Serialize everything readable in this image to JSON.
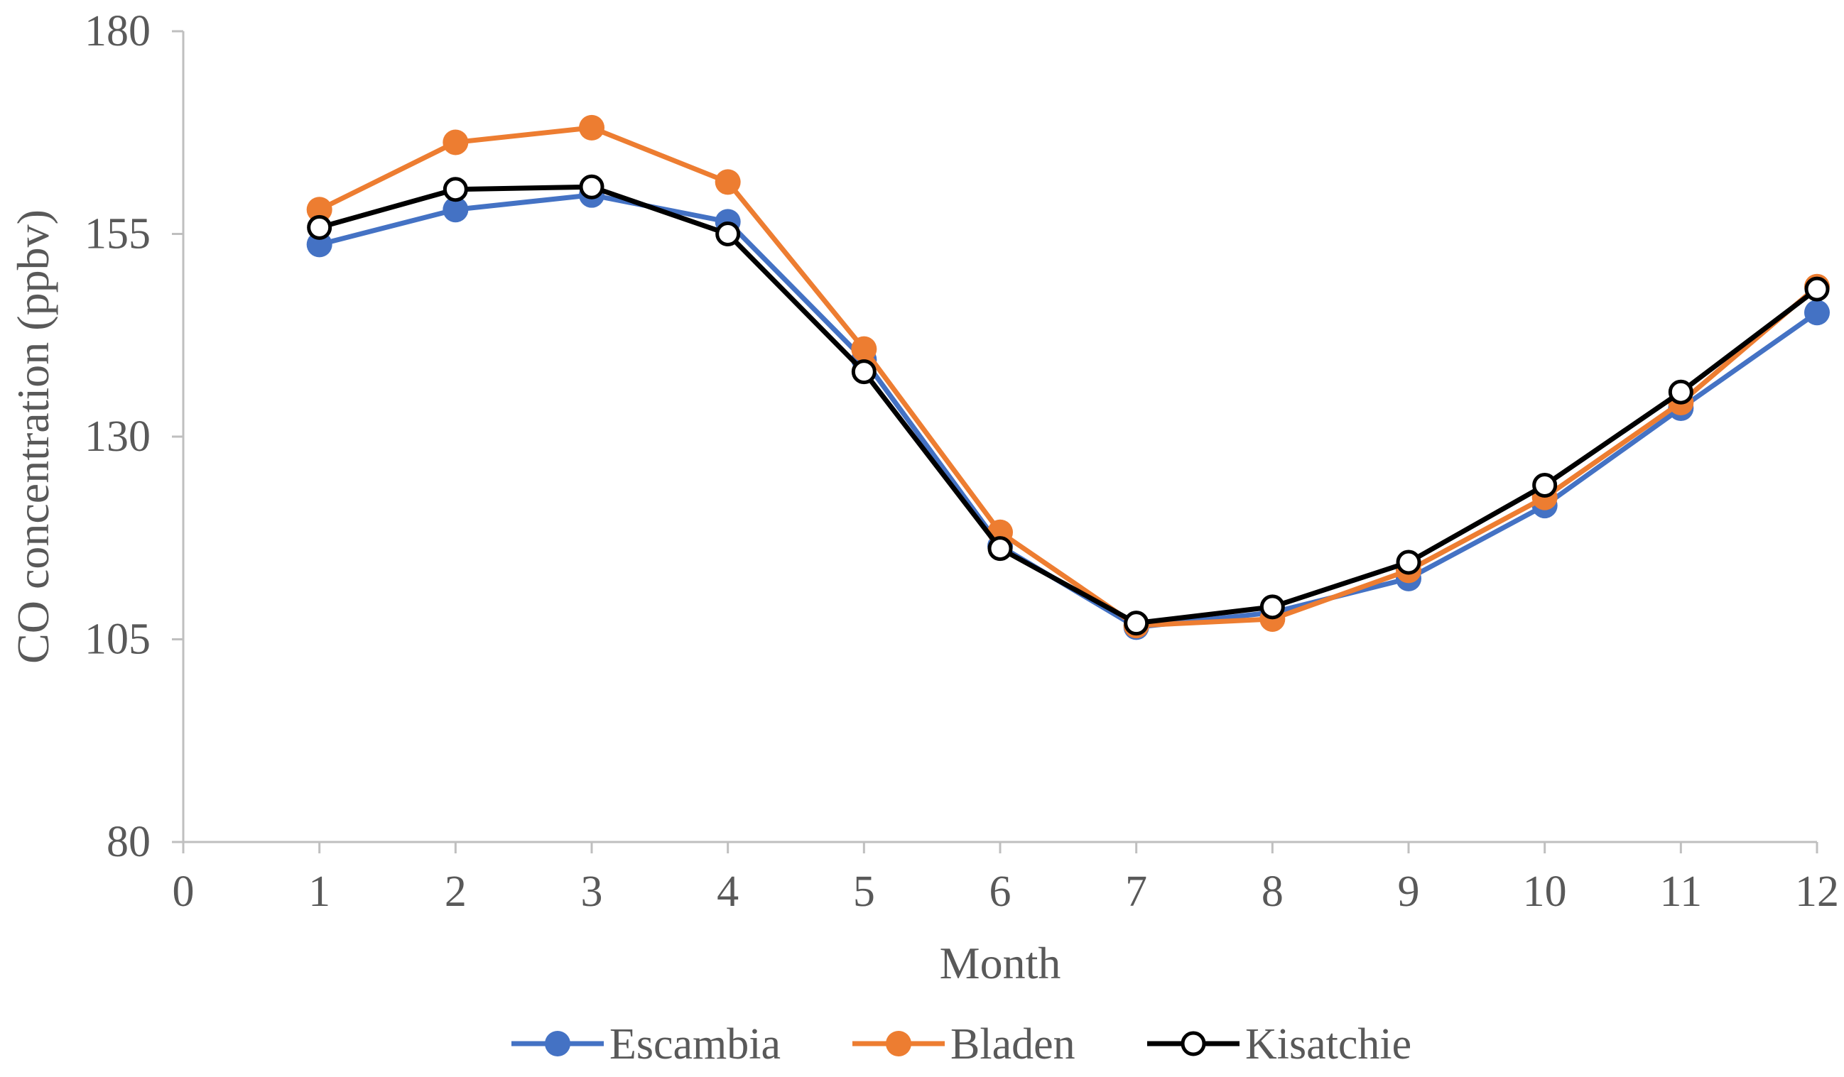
{
  "chart_data": {
    "type": "line",
    "title": "",
    "xlabel": "Month",
    "ylabel": "CO concentration (ppbv)",
    "xlim": [
      0,
      12
    ],
    "ylim": [
      80,
      180
    ],
    "x_ticks": [
      "0",
      "1",
      "2",
      "3",
      "4",
      "5",
      "6",
      "7",
      "8",
      "9",
      "10",
      "11",
      "12"
    ],
    "y_ticks": [
      "80",
      "105",
      "130",
      "155",
      "180"
    ],
    "grid": false,
    "legend_position": "bottom",
    "x": [
      1,
      2,
      3,
      4,
      5,
      6,
      7,
      8,
      9,
      10,
      11,
      12
    ],
    "series": [
      {
        "name": "Escambia",
        "color": "#4472C4",
        "marker": "filled-circle",
        "values": [
          153.7,
          158.0,
          159.8,
          156.5,
          139.5,
          116.5,
          106.5,
          108.3,
          112.5,
          121.5,
          133.5,
          145.3
        ]
      },
      {
        "name": "Bladen",
        "color": "#ED7D31",
        "marker": "filled-circle",
        "values": [
          158.0,
          166.3,
          168.1,
          161.4,
          140.8,
          118.2,
          106.7,
          107.5,
          113.5,
          122.5,
          134.2,
          148.5
        ]
      },
      {
        "name": "Kisatchie",
        "color": "#000000",
        "marker": "open-circle",
        "values": [
          155.8,
          160.5,
          160.8,
          155.0,
          138.0,
          116.2,
          107.0,
          109.0,
          114.5,
          124.0,
          135.5,
          148.2
        ]
      }
    ]
  }
}
